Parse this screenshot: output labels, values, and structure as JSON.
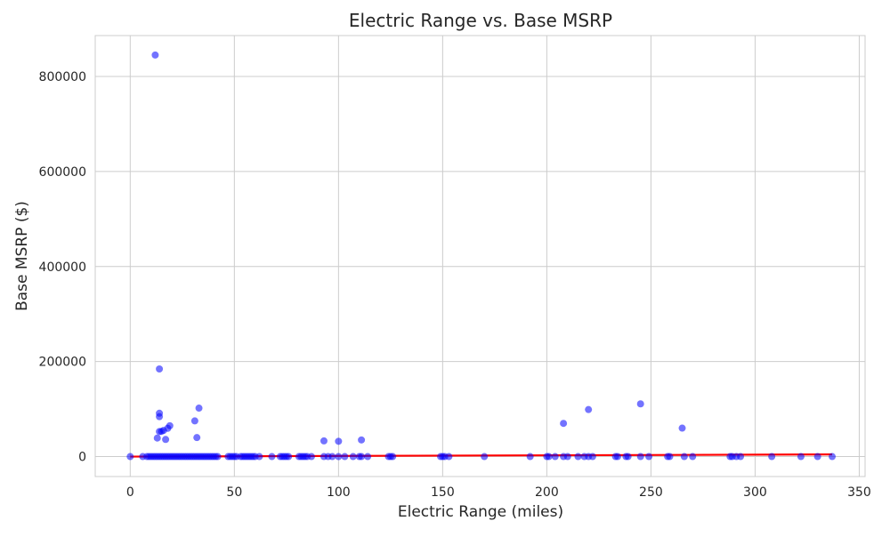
{
  "chart_data": {
    "type": "scatter",
    "title": "Electric Range vs. Base MSRP",
    "xlabel": "Electric Range (miles)",
    "ylabel": "Base MSRP ($)",
    "xlim": [
      -16.8,
      352.8
    ],
    "ylim": [
      -42000,
      886000
    ],
    "x_ticks": [
      0,
      50,
      100,
      150,
      200,
      250,
      300,
      350
    ],
    "y_ticks": [
      0,
      200000,
      400000,
      600000,
      800000
    ],
    "grid": true,
    "legend": "none",
    "colors": {
      "points": "#0000ff",
      "trend": "#ff0000",
      "grid": "#cccccc"
    },
    "series": [
      {
        "values": [
          [
            12,
            845000
          ],
          [
            14,
            184400
          ],
          [
            14,
            91250
          ],
          [
            14,
            84000
          ],
          [
            13,
            39000
          ],
          [
            15,
            53000
          ],
          [
            14,
            52650
          ],
          [
            16,
            55000
          ],
          [
            17,
            36000
          ],
          [
            18,
            59500
          ],
          [
            19,
            64950
          ],
          [
            31,
            75095
          ],
          [
            33,
            102000
          ],
          [
            32,
            39995
          ],
          [
            93,
            32995
          ],
          [
            100,
            32250
          ],
          [
            111,
            34995
          ],
          [
            208,
            69900
          ],
          [
            220,
            98950
          ],
          [
            245,
            110950
          ],
          [
            265,
            59900
          ],
          [
            0,
            0
          ],
          [
            6,
            0
          ],
          [
            8,
            0
          ],
          [
            9,
            0
          ],
          [
            10,
            0
          ],
          [
            11,
            0
          ],
          [
            12,
            0
          ],
          [
            13,
            0
          ],
          [
            14,
            0
          ],
          [
            15,
            0
          ],
          [
            16,
            0
          ],
          [
            17,
            0
          ],
          [
            18,
            0
          ],
          [
            19,
            0
          ],
          [
            20,
            0
          ],
          [
            21,
            0
          ],
          [
            22,
            0
          ],
          [
            23,
            0
          ],
          [
            24,
            0
          ],
          [
            25,
            0
          ],
          [
            26,
            0
          ],
          [
            27,
            0
          ],
          [
            28,
            0
          ],
          [
            29,
            0
          ],
          [
            30,
            0
          ],
          [
            31,
            0
          ],
          [
            32,
            0
          ],
          [
            33,
            0
          ],
          [
            34,
            0
          ],
          [
            35,
            0
          ],
          [
            36,
            0
          ],
          [
            37,
            0
          ],
          [
            38,
            0
          ],
          [
            39,
            0
          ],
          [
            40,
            0
          ],
          [
            41,
            0
          ],
          [
            42,
            0
          ],
          [
            47,
            0
          ],
          [
            48,
            0
          ],
          [
            49,
            0
          ],
          [
            50,
            0
          ],
          [
            51,
            0
          ],
          [
            53,
            0
          ],
          [
            54,
            0
          ],
          [
            55,
            0
          ],
          [
            56,
            0
          ],
          [
            57,
            0
          ],
          [
            58,
            0
          ],
          [
            59,
            0
          ],
          [
            60,
            0
          ],
          [
            62,
            0
          ],
          [
            68,
            0
          ],
          [
            72,
            0
          ],
          [
            73,
            0
          ],
          [
            74,
            0
          ],
          [
            75,
            0
          ],
          [
            76,
            0
          ],
          [
            81,
            0
          ],
          [
            82,
            0
          ],
          [
            83,
            0
          ],
          [
            84,
            0
          ],
          [
            85,
            0
          ],
          [
            87,
            0
          ],
          [
            93,
            0
          ],
          [
            95,
            0
          ],
          [
            97,
            0
          ],
          [
            100,
            0
          ],
          [
            103,
            0
          ],
          [
            107,
            0
          ],
          [
            110,
            0
          ],
          [
            111,
            0
          ],
          [
            114,
            0
          ],
          [
            124,
            0
          ],
          [
            125,
            0
          ],
          [
            126,
            0
          ],
          [
            149,
            0
          ],
          [
            150,
            0
          ],
          [
            151,
            0
          ],
          [
            153,
            0
          ],
          [
            170,
            0
          ],
          [
            192,
            0
          ],
          [
            200,
            0
          ],
          [
            201,
            0
          ],
          [
            204,
            0
          ],
          [
            208,
            0
          ],
          [
            210,
            0
          ],
          [
            215,
            0
          ],
          [
            218,
            0
          ],
          [
            220,
            0
          ],
          [
            222,
            0
          ],
          [
            233,
            0
          ],
          [
            234,
            0
          ],
          [
            238,
            0
          ],
          [
            239,
            0
          ],
          [
            245,
            0
          ],
          [
            249,
            0
          ],
          [
            258,
            0
          ],
          [
            259,
            0
          ],
          [
            266,
            0
          ],
          [
            270,
            0
          ],
          [
            288,
            0
          ],
          [
            289,
            0
          ],
          [
            291,
            0
          ],
          [
            293,
            0
          ],
          [
            308,
            0
          ],
          [
            322,
            0
          ],
          [
            330,
            0
          ],
          [
            337,
            0
          ]
        ]
      }
    ],
    "trendline": {
      "x": [
        0,
        337
      ],
      "y": [
        0,
        4500
      ]
    }
  }
}
